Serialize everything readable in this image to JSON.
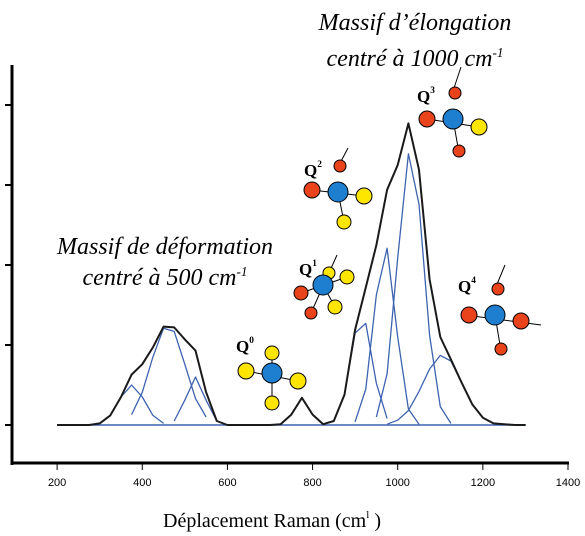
{
  "chart_data": {
    "type": "line",
    "x_label": {
      "text": "Déplacement Raman (cm",
      "sup": "l",
      "after": " )"
    },
    "annotations": [
      {
        "text": "Massif d’élongation"
      },
      {
        "text": "centré à 1000 cm",
        "sup": "-1"
      },
      {
        "text": "Massif de déformation"
      },
      {
        "text": "centré à 500 cm",
        "sup": "-1"
      },
      {
        "text": "Q",
        "sup": "0"
      },
      {
        "text": "Q",
        "sup": "1"
      },
      {
        "text": "Q",
        "sup": "2"
      },
      {
        "text": "Q",
        "sup": "3"
      },
      {
        "text": "Q",
        "sup": "4"
      }
    ],
    "x": [
      200,
      225,
      250,
      275,
      300,
      325,
      350,
      375,
      400,
      425,
      450,
      475,
      500,
      525,
      550,
      575,
      600,
      625,
      650,
      675,
      700,
      725,
      750,
      775,
      800,
      825,
      850,
      875,
      900,
      925,
      950,
      975,
      1000,
      1025,
      1050,
      1075,
      1100,
      1125,
      1150,
      1175,
      1200,
      1225,
      1250,
      1275,
      1300
    ],
    "series": [
      {
        "color": "#1a1a1a",
        "values": [
          0,
          0,
          0,
          0,
          0.02,
          0.12,
          0.35,
          0.63,
          0.76,
          0.97,
          1.23,
          1.22,
          1.07,
          0.93,
          0.41,
          0.05,
          0,
          0,
          0,
          0,
          0,
          0.01,
          0.13,
          0.34,
          0.13,
          0.01,
          0.05,
          0.38,
          1.19,
          1.72,
          2.25,
          2.94,
          3.25,
          3.77,
          3.19,
          1.82,
          1.1,
          0.82,
          0.53,
          0.26,
          0.09,
          0.02,
          0.01,
          0,
          0
        ]
      },
      {
        "color": "#3d63b0",
        "values": [
          null,
          null,
          null,
          null,
          0.02,
          0.12,
          0.35,
          0.5,
          0.35,
          0.12,
          0.02,
          null,
          null,
          null,
          null,
          null,
          null,
          null,
          null,
          null,
          null,
          null,
          null,
          null,
          null,
          null,
          null,
          null,
          null,
          null,
          null,
          null,
          null,
          null,
          null,
          null,
          null,
          null,
          null,
          null,
          null,
          null,
          null,
          null,
          null
        ]
      },
      {
        "color": "#3d63b0",
        "values": [
          null,
          null,
          null,
          null,
          null,
          null,
          null,
          0.13,
          0.41,
          0.85,
          1.21,
          1.17,
          0.76,
          0.33,
          0.1,
          null,
          null,
          null,
          null,
          null,
          null,
          null,
          null,
          null,
          null,
          null,
          null,
          null,
          null,
          null,
          null,
          null,
          null,
          null,
          null,
          null,
          null,
          null,
          null,
          null,
          null,
          null,
          null,
          null,
          null
        ]
      },
      {
        "color": "#3d63b0",
        "values": [
          null,
          null,
          null,
          null,
          null,
          null,
          null,
          null,
          null,
          null,
          null,
          0.05,
          0.31,
          0.6,
          0.31,
          0.05,
          null,
          null,
          null,
          null,
          null,
          null,
          null,
          null,
          null,
          null,
          null,
          null,
          null,
          null,
          null,
          null,
          null,
          null,
          null,
          null,
          null,
          null,
          null,
          null,
          null,
          null,
          null,
          null,
          null
        ]
      },
      {
        "color": "#3d63b0",
        "values": [
          null,
          null,
          null,
          null,
          null,
          null,
          null,
          null,
          null,
          null,
          null,
          null,
          null,
          null,
          null,
          null,
          null,
          null,
          null,
          null,
          null,
          0.01,
          0.13,
          0.34,
          0.13,
          0.01,
          null,
          null,
          null,
          null,
          null,
          null,
          null,
          null,
          null,
          null,
          null,
          null,
          null,
          null,
          null,
          null,
          null,
          null,
          null
        ]
      },
      {
        "color": "#3d63b0",
        "values": [
          null,
          null,
          null,
          null,
          null,
          null,
          null,
          null,
          null,
          null,
          null,
          null,
          null,
          null,
          null,
          null,
          null,
          null,
          null,
          null,
          null,
          null,
          null,
          null,
          null,
          null,
          0.05,
          0.38,
          1.15,
          1.27,
          0.52,
          0.08,
          null,
          null,
          null,
          null,
          null,
          null,
          null,
          null,
          null,
          null,
          null,
          null,
          null
        ]
      },
      {
        "color": "#3d63b0",
        "values": [
          null,
          null,
          null,
          null,
          null,
          null,
          null,
          null,
          null,
          null,
          null,
          null,
          null,
          null,
          null,
          null,
          null,
          null,
          null,
          null,
          null,
          null,
          null,
          null,
          null,
          null,
          null,
          null,
          0.04,
          0.45,
          1.63,
          2.21,
          1.1,
          0.2,
          0.01,
          null,
          null,
          null,
          null,
          null,
          null,
          null,
          null,
          null,
          null
        ]
      },
      {
        "color": "#3d63b0",
        "values": [
          null,
          null,
          null,
          null,
          null,
          null,
          null,
          null,
          null,
          null,
          null,
          null,
          null,
          null,
          null,
          null,
          null,
          null,
          null,
          null,
          null,
          null,
          null,
          null,
          null,
          null,
          null,
          null,
          null,
          null,
          0.1,
          0.64,
          2.09,
          3.39,
          2.76,
          1.12,
          0.23,
          0.02,
          null,
          null,
          null,
          null,
          null,
          null,
          null
        ]
      },
      {
        "color": "#3d63b0",
        "values": [
          null,
          null,
          null,
          null,
          null,
          null,
          null,
          null,
          null,
          null,
          null,
          null,
          null,
          null,
          null,
          null,
          null,
          null,
          null,
          null,
          null,
          null,
          null,
          null,
          null,
          null,
          null,
          null,
          null,
          null,
          null,
          0.01,
          0.06,
          0.18,
          0.42,
          0.7,
          0.87,
          0.8,
          0.53,
          0.26,
          0.09,
          0.02,
          0.01,
          null,
          null
        ]
      }
    ],
    "xlim": [
      94,
      1400
    ],
    "xticks": [
      200,
      400,
      600,
      800,
      1000,
      1200,
      1400
    ],
    "ylim": [
      -0.475,
      4.5
    ],
    "yticks": [
      0,
      1,
      2,
      3,
      4
    ]
  }
}
